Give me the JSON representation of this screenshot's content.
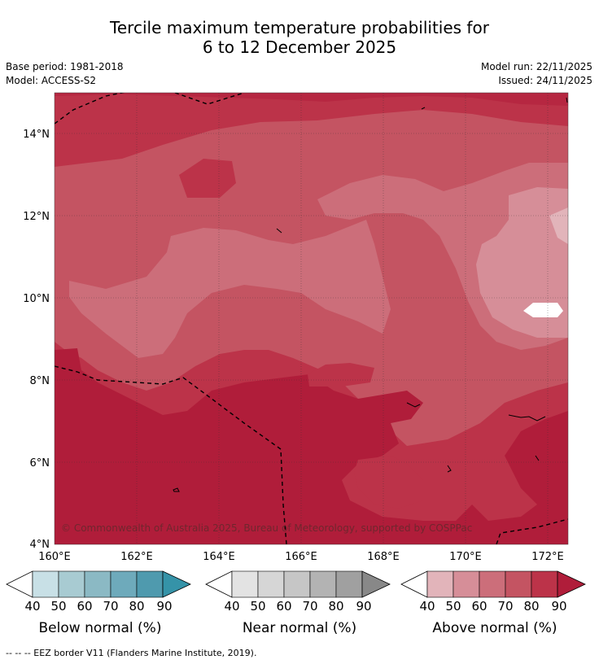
{
  "title": {
    "line1": "Tercile maximum temperature probabilities for",
    "line2": "6 to 12 December 2025"
  },
  "meta": {
    "base_period": "Base period: 1981-2018",
    "model": "Model: ACCESS-S2",
    "model_run": "Model run: 22/11/2025",
    "issued": "Issued: 24/11/2025"
  },
  "map": {
    "lon_ticks": [
      "160°E",
      "162°E",
      "164°E",
      "166°E",
      "168°E",
      "170°E",
      "172°E"
    ],
    "lat_ticks": [
      "14°N",
      "12°N",
      "10°N",
      "8°N",
      "6°N",
      "4°N"
    ],
    "copyright": "© Commonwealth of Australia 2025, Bureau of Meteorology, supported by COSPPac",
    "eez_border_shown": true
  },
  "colorbars": [
    {
      "label": "Below normal (%)",
      "ticks": [
        "40",
        "50",
        "60",
        "70",
        "80",
        "90"
      ],
      "colors": [
        "#c8e0e6",
        "#a8cbd2",
        "#8bb9c4",
        "#6eaabb",
        "#4f9aae",
        "#3593a8"
      ]
    },
    {
      "label": "Near normal (%)",
      "ticks": [
        "40",
        "50",
        "60",
        "70",
        "80",
        "90"
      ],
      "colors": [
        "#e3e3e3",
        "#d6d6d6",
        "#c6c6c6",
        "#b3b3b3",
        "#a0a0a0",
        "#888888"
      ]
    },
    {
      "label": "Above normal (%)",
      "ticks": [
        "40",
        "50",
        "60",
        "70",
        "80",
        "90"
      ],
      "colors": [
        "#e2b4ba",
        "#d68e98",
        "#cc6e7a",
        "#c45462",
        "#bc3349",
        "#b01d3a"
      ]
    }
  ],
  "footnote": "--  --  -- EEZ border V11 (Flanders Marine Institute, 2019)."
}
